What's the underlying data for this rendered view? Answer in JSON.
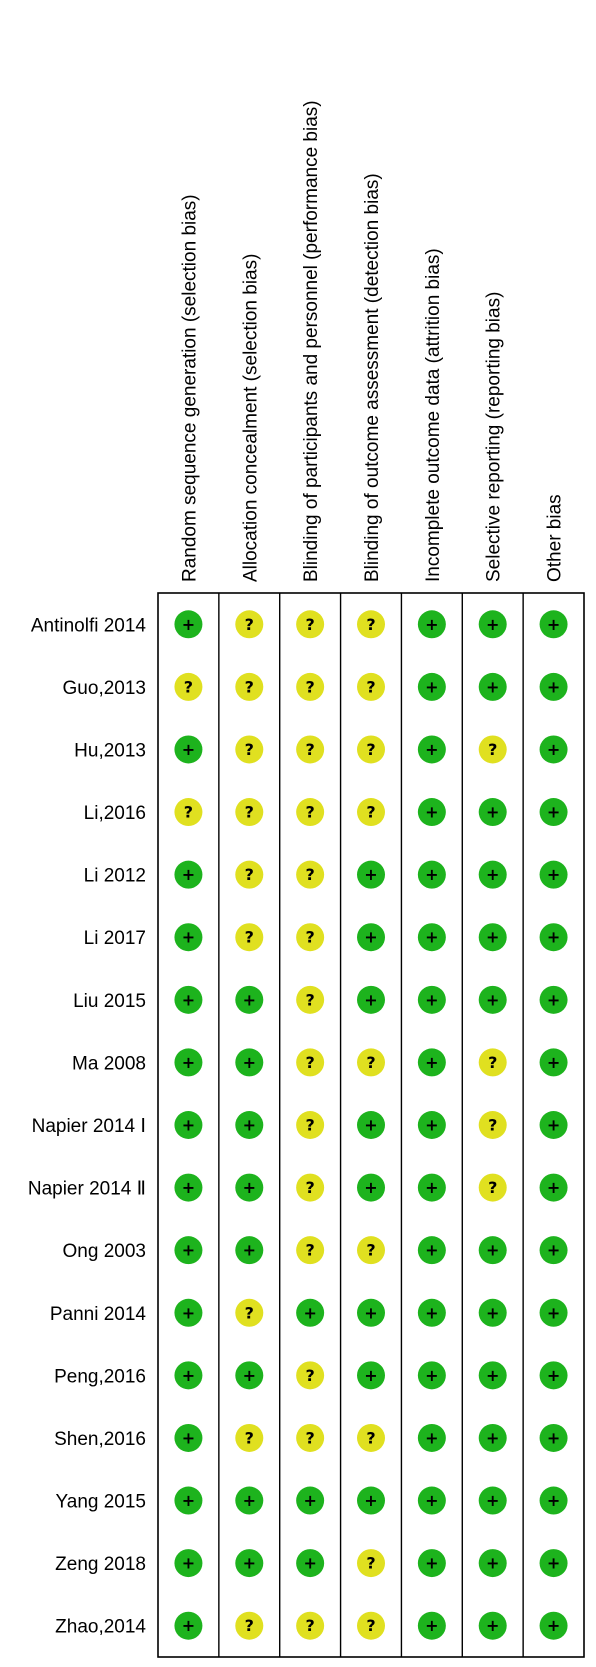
{
  "chart_data": {
    "type": "table",
    "columns": [
      "Random sequence generation (selection bias)",
      "Allocation concealment (selection bias)",
      "Blinding of participants and personnel (performance bias)",
      "Blinding of outcome assessment (detection bias)",
      "Incomplete outcome data (attrition bias)",
      "Selective reporting (reporting bias)",
      "Other bias"
    ],
    "rows": [
      {
        "study": "Antinolfi 2014",
        "ratings": [
          "low",
          "unclear",
          "unclear",
          "unclear",
          "low",
          "low",
          "low"
        ]
      },
      {
        "study": "Guo,2013",
        "ratings": [
          "unclear",
          "unclear",
          "unclear",
          "unclear",
          "low",
          "low",
          "low"
        ]
      },
      {
        "study": "Hu,2013",
        "ratings": [
          "low",
          "unclear",
          "unclear",
          "unclear",
          "low",
          "unclear",
          "low"
        ]
      },
      {
        "study": "Li,2016",
        "ratings": [
          "unclear",
          "unclear",
          "unclear",
          "unclear",
          "low",
          "low",
          "low"
        ]
      },
      {
        "study": "Li 2012",
        "ratings": [
          "low",
          "unclear",
          "unclear",
          "low",
          "low",
          "low",
          "low"
        ]
      },
      {
        "study": "Li 2017",
        "ratings": [
          "low",
          "unclear",
          "unclear",
          "low",
          "low",
          "low",
          "low"
        ]
      },
      {
        "study": "Liu 2015",
        "ratings": [
          "low",
          "low",
          "unclear",
          "low",
          "low",
          "low",
          "low"
        ]
      },
      {
        "study": "Ma 2008",
        "ratings": [
          "low",
          "low",
          "unclear",
          "unclear",
          "low",
          "unclear",
          "low"
        ]
      },
      {
        "study": "Napier 2014 Ⅰ",
        "ratings": [
          "low",
          "low",
          "unclear",
          "low",
          "low",
          "unclear",
          "low"
        ]
      },
      {
        "study": "Napier 2014 Ⅱ",
        "ratings": [
          "low",
          "low",
          "unclear",
          "low",
          "low",
          "unclear",
          "low"
        ]
      },
      {
        "study": "Ong 2003",
        "ratings": [
          "low",
          "low",
          "unclear",
          "unclear",
          "low",
          "low",
          "low"
        ]
      },
      {
        "study": "Panni 2014",
        "ratings": [
          "low",
          "unclear",
          "low",
          "low",
          "low",
          "low",
          "low"
        ]
      },
      {
        "study": "Peng,2016",
        "ratings": [
          "low",
          "low",
          "unclear",
          "low",
          "low",
          "low",
          "low"
        ]
      },
      {
        "study": "Shen,2016",
        "ratings": [
          "low",
          "unclear",
          "unclear",
          "unclear",
          "low",
          "low",
          "low"
        ]
      },
      {
        "study": "Yang 2015",
        "ratings": [
          "low",
          "low",
          "low",
          "low",
          "low",
          "low",
          "low"
        ]
      },
      {
        "study": "Zeng 2018",
        "ratings": [
          "low",
          "low",
          "low",
          "unclear",
          "low",
          "low",
          "low"
        ]
      },
      {
        "study": "Zhao,2014",
        "ratings": [
          "low",
          "unclear",
          "unclear",
          "unclear",
          "low",
          "low",
          "low"
        ]
      }
    ],
    "symbols": {
      "low": "+",
      "unclear": "?"
    },
    "colors": {
      "low": "#1db31d",
      "unclear": "#e0e020",
      "grid": "#000000"
    }
  }
}
